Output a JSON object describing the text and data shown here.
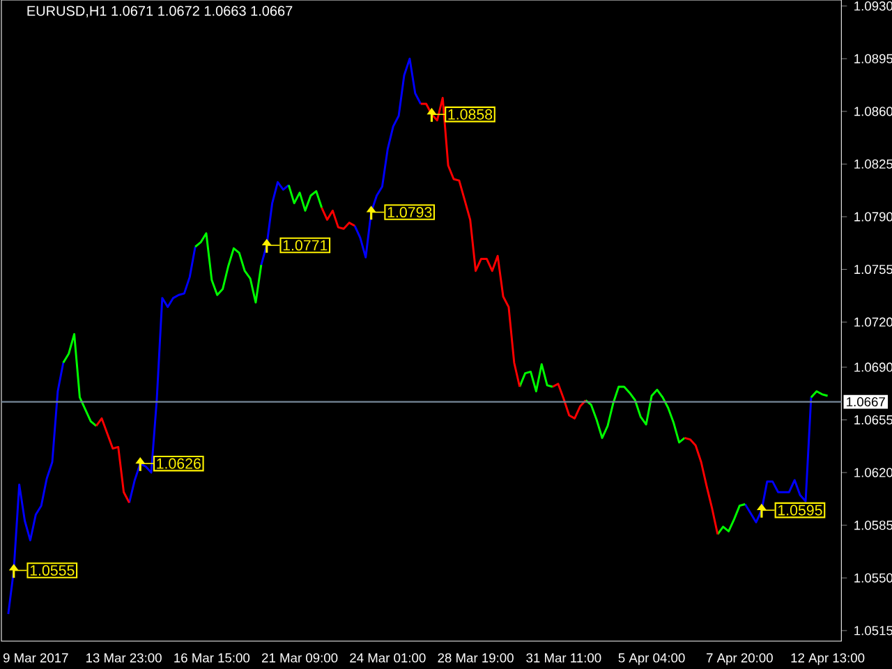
{
  "chart_data": {
    "type": "line",
    "title": "EURUSD,H1  1.0671 1.0672 1.0663 1.0667",
    "categories": [
      null,
      null,
      null,
      null,
      null,
      null,
      "9 Mar 2017",
      null,
      null,
      null,
      null,
      null,
      null,
      null,
      null,
      null,
      null,
      null,
      null,
      null,
      null,
      null,
      "13 Mar 23:00",
      null,
      null,
      null,
      null,
      null,
      null,
      null,
      null,
      null,
      null,
      null,
      null,
      null,
      null,
      null,
      "16 Mar 15:00",
      null,
      null,
      null,
      null,
      null,
      null,
      null,
      null,
      null,
      null,
      null,
      null,
      null,
      null,
      null,
      "21 Mar 09:00",
      null,
      null,
      null,
      null,
      null,
      null,
      null,
      null,
      null,
      null,
      null,
      null,
      null,
      null,
      null,
      "24 Mar 01:00",
      null,
      null,
      null,
      null,
      null,
      null,
      null,
      null,
      null,
      null,
      null,
      null,
      null,
      null,
      null,
      "28 Mar 19:00",
      null,
      null,
      null,
      null,
      null,
      null,
      null,
      null,
      null,
      null,
      null,
      null,
      null,
      null,
      null,
      "31 Mar 11:00",
      null,
      null,
      null,
      null,
      null,
      null,
      null,
      null,
      null,
      null,
      null,
      null,
      null,
      null,
      null,
      "5 Apr 04:00",
      null,
      null,
      null,
      null,
      null,
      null,
      null,
      null,
      null,
      null,
      null,
      null,
      null,
      null,
      null,
      "7 Apr 20:00",
      null,
      null,
      null,
      null,
      null,
      null,
      null,
      null,
      null,
      null,
      null,
      null,
      null,
      null,
      null,
      "12 Apr 13:00",
      null,
      null
    ],
    "ylim": [
      1.0508,
      1.0934
    ],
    "yticks": [
      {
        "value": 1.093,
        "label": "1.0930"
      },
      {
        "value": 1.0895,
        "label": "1.0895"
      },
      {
        "value": 1.086,
        "label": "1.0860"
      },
      {
        "value": 1.0825,
        "label": "1.0825"
      },
      {
        "value": 1.079,
        "label": "1.0790"
      },
      {
        "value": 1.0755,
        "label": "1.0755"
      },
      {
        "value": 1.072,
        "label": "1.0720"
      },
      {
        "value": 1.069,
        "label": "1.0690"
      },
      {
        "value": 1.0655,
        "label": "1.0655"
      },
      {
        "value": 1.062,
        "label": "1.0620"
      },
      {
        "value": 1.0585,
        "label": "1.0585"
      },
      {
        "value": 1.055,
        "label": "1.0550"
      },
      {
        "value": 1.0515,
        "label": "1.0515"
      }
    ],
    "series": [
      {
        "color": "#0000ff",
        "values": [
          null,
          1.0526,
          1.0555,
          1.0612,
          1.0588,
          1.0575,
          1.0592,
          1.0598,
          1.0616,
          1.0627,
          1.0674,
          1.0693,
          null,
          null,
          null,
          null,
          null,
          null,
          null,
          null,
          null,
          null,
          null,
          1.06,
          1.0615,
          1.0626,
          1.0624,
          1.062,
          1.0668,
          1.0736,
          1.073,
          1.0736,
          1.0738,
          1.0739,
          1.075,
          1.077,
          null,
          null,
          null,
          null,
          null,
          null,
          null,
          null,
          null,
          null,
          null,
          1.0758,
          1.0771,
          1.0799,
          1.0813,
          1.0808,
          1.0811,
          null,
          null,
          null,
          null,
          null,
          null,
          null,
          null,
          null,
          null,
          null,
          1.0784,
          1.0776,
          1.0763,
          1.0793,
          1.0804,
          1.081,
          1.0835,
          1.085,
          1.0857,
          1.0884,
          1.0895,
          1.0872,
          1.0865,
          null,
          null,
          null,
          null,
          null,
          null,
          null,
          null,
          null,
          null,
          null,
          null,
          null,
          null,
          null,
          null,
          null,
          null,
          null,
          null,
          null,
          null,
          null,
          null,
          null,
          null,
          null,
          null,
          null,
          null,
          null,
          null,
          null,
          null,
          null,
          null,
          null,
          null,
          null,
          null,
          null,
          null,
          null,
          null,
          null,
          null,
          null,
          null,
          null,
          null,
          null,
          null,
          null,
          null,
          null,
          null,
          null,
          null,
          1.0599,
          1.0593,
          1.0587,
          1.0595,
          1.0614,
          1.0614,
          1.0607,
          1.0607,
          1.0607,
          1.0615,
          1.0605,
          1.0601,
          1.067,
          null,
          null,
          null,
          null,
          null
        ]
      },
      {
        "color": "#00ff00",
        "values": [
          null,
          null,
          null,
          null,
          null,
          null,
          null,
          null,
          null,
          null,
          null,
          1.0693,
          1.0699,
          1.0712,
          1.067,
          1.0662,
          1.0654,
          1.0651,
          null,
          null,
          null,
          null,
          null,
          null,
          null,
          null,
          null,
          null,
          null,
          null,
          null,
          null,
          null,
          null,
          null,
          1.077,
          1.0773,
          1.0779,
          1.0748,
          1.0738,
          1.0742,
          1.0757,
          1.0769,
          1.0766,
          1.0754,
          1.0749,
          1.0733,
          1.0758,
          null,
          null,
          null,
          null,
          1.0811,
          1.0799,
          1.0806,
          1.0794,
          1.0804,
          1.0807,
          1.0796,
          null,
          null,
          null,
          null,
          null,
          null,
          null,
          null,
          null,
          null,
          null,
          null,
          null,
          null,
          null,
          null,
          null,
          null,
          null,
          null,
          null,
          null,
          null,
          null,
          null,
          null,
          null,
          null,
          null,
          null,
          null,
          null,
          null,
          null,
          null,
          1.0677,
          1.0686,
          1.0687,
          1.0674,
          1.0692,
          1.0678,
          1.0677,
          null,
          null,
          null,
          null,
          null,
          1.0668,
          1.0665,
          1.0655,
          1.0643,
          1.0651,
          1.0666,
          1.0677,
          1.0677,
          1.0673,
          1.0668,
          1.0657,
          1.0652,
          1.0671,
          1.0675,
          1.067,
          1.0663,
          1.0653,
          1.064,
          1.0643,
          null,
          null,
          null,
          null,
          null,
          1.0579,
          1.0584,
          1.0581,
          1.0589,
          1.0598,
          1.0599,
          null,
          null,
          null,
          null,
          null,
          null,
          null,
          null,
          null,
          null,
          null,
          1.067,
          1.0674,
          1.0672,
          1.0671,
          null,
          null
        ]
      },
      {
        "color": "#ff0000",
        "values": [
          null,
          null,
          null,
          null,
          null,
          null,
          null,
          null,
          null,
          null,
          null,
          null,
          null,
          null,
          null,
          null,
          null,
          1.0651,
          1.0656,
          1.0646,
          1.0636,
          1.0637,
          1.0607,
          1.06,
          null,
          null,
          null,
          null,
          null,
          null,
          null,
          null,
          null,
          null,
          null,
          null,
          null,
          null,
          null,
          null,
          null,
          null,
          null,
          null,
          null,
          null,
          null,
          null,
          null,
          null,
          null,
          null,
          null,
          null,
          null,
          null,
          null,
          null,
          1.0796,
          1.0788,
          1.0794,
          1.0783,
          1.0782,
          1.0786,
          1.0784,
          null,
          null,
          null,
          null,
          null,
          null,
          null,
          null,
          null,
          null,
          null,
          1.0865,
          1.0865,
          1.0858,
          1.0854,
          1.0869,
          1.0824,
          1.0815,
          1.0814,
          1.0801,
          1.0788,
          1.0754,
          1.0762,
          1.0762,
          1.0754,
          1.0764,
          1.0737,
          1.073,
          1.0693,
          1.0677,
          null,
          null,
          null,
          null,
          null,
          1.0677,
          1.0679,
          1.0669,
          1.0658,
          1.0656,
          1.0664,
          1.0668,
          null,
          null,
          null,
          null,
          null,
          null,
          null,
          null,
          null,
          null,
          null,
          null,
          null,
          null,
          null,
          null,
          null,
          1.0643,
          1.0642,
          1.0638,
          1.0627,
          1.0611,
          1.0596,
          1.0579,
          null,
          null,
          null,
          null,
          null,
          null,
          null,
          null,
          null,
          null,
          null,
          null,
          null,
          null,
          null,
          null,
          null,
          null,
          null,
          null,
          null,
          null
        ]
      }
    ],
    "ref_lines": [
      {
        "axis": "y",
        "value": 1.0667,
        "label": "1.0667",
        "color": "#778899"
      }
    ],
    "annotations": [
      "1.0555",
      "1.0626",
      "1.0771",
      "1.0793",
      "1.0858",
      "1.0595"
    ]
  }
}
